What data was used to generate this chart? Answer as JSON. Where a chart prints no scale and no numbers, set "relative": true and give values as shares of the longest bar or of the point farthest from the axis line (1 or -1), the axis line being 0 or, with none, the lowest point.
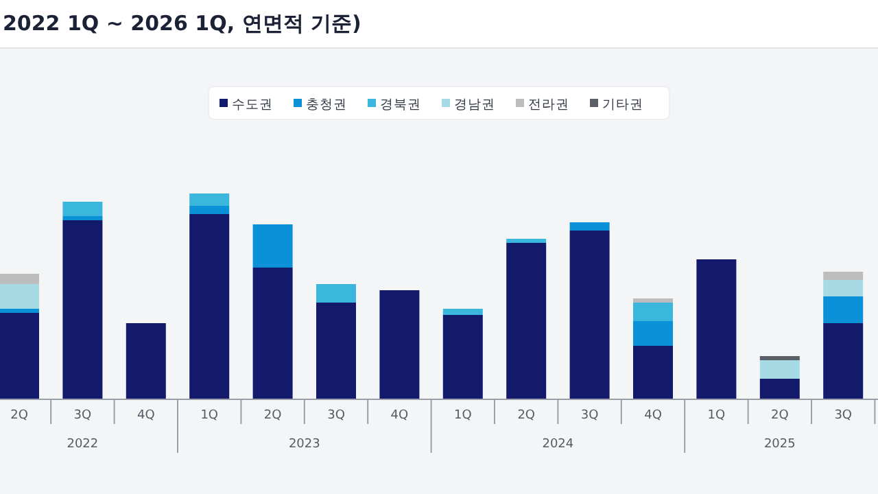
{
  "chart_data": {
    "type": "bar",
    "stacked": true,
    "relative": true,
    "title": "2022 1Q ~ 2026 1Q, 연면적 기준)",
    "legend": "top",
    "categories": [
      "2Q",
      "3Q",
      "4Q",
      "1Q",
      "2Q",
      "3Q",
      "4Q",
      "1Q",
      "2Q",
      "3Q",
      "4Q",
      "1Q",
      "2Q",
      "3Q"
    ],
    "series": [
      {
        "name": "수도권",
        "color": "#141a6b",
        "values": [
          0.42,
          0.87,
          0.37,
          0.9,
          0.64,
          0.47,
          0.53,
          0.41,
          0.76,
          0.82,
          0.26,
          0.68,
          0.1,
          0.37
        ]
      },
      {
        "name": "충청권",
        "color": "#0a91d8",
        "values": [
          0.02,
          0.02,
          0,
          0.04,
          0.21,
          0,
          0,
          0,
          0,
          0.04,
          0.12,
          0,
          0,
          0.13
        ]
      },
      {
        "name": "경북권",
        "color": "#3bb6dc",
        "values": [
          0,
          0.07,
          0,
          0.06,
          0,
          0.09,
          0,
          0.03,
          0.02,
          0,
          0.09,
          0,
          0,
          0
        ]
      },
      {
        "name": "경남권",
        "color": "#a6dbe6",
        "values": [
          0.12,
          0,
          0,
          0,
          0,
          0,
          0,
          0,
          0,
          0,
          0,
          0,
          0.09,
          0.08
        ]
      },
      {
        "name": "전라권",
        "color": "#bdbdbd",
        "values": [
          0.05,
          0,
          0,
          0,
          0,
          0,
          0,
          0,
          0,
          0,
          0.02,
          0,
          0,
          0.04
        ]
      },
      {
        "name": "기타권",
        "color": "#5a5e66",
        "values": [
          0,
          0,
          0,
          0,
          0,
          0,
          0,
          0,
          0,
          0,
          0,
          0,
          0.02,
          0
        ]
      }
    ],
    "annotations": [
      "2022",
      "2023",
      "2024",
      "2025"
    ]
  }
}
